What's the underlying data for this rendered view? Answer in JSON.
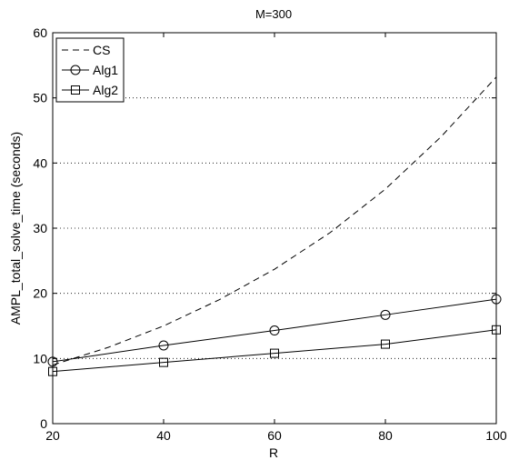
{
  "chart_data": {
    "type": "line",
    "title": "M=300",
    "xlabel": "R",
    "ylabel": "AMPL_total_solve_time (seconds)",
    "xlim": [
      20,
      100
    ],
    "ylim": [
      0,
      60
    ],
    "xticks": [
      20,
      40,
      60,
      80,
      100
    ],
    "yticks": [
      0,
      10,
      20,
      30,
      40,
      50,
      60
    ],
    "grid": "horizontal-dotted",
    "legend_position": "top-left",
    "series": [
      {
        "name": "CS",
        "style": "dashed",
        "marker": "none",
        "color": "#000000",
        "x": [
          20,
          30,
          40,
          50,
          60,
          70,
          80,
          90,
          100
        ],
        "y": [
          9.0,
          11.7,
          15.0,
          19.0,
          23.7,
          29.3,
          36.0,
          44.0,
          53.2
        ]
      },
      {
        "name": "Alg1",
        "style": "solid",
        "marker": "circle",
        "color": "#000000",
        "x": [
          20,
          40,
          60,
          80,
          100
        ],
        "y": [
          9.5,
          12.0,
          14.3,
          16.7,
          19.1
        ]
      },
      {
        "name": "Alg2",
        "style": "solid",
        "marker": "square",
        "color": "#000000",
        "x": [
          20,
          40,
          60,
          80,
          100
        ],
        "y": [
          8.0,
          9.4,
          10.8,
          12.2,
          14.4
        ]
      }
    ]
  }
}
